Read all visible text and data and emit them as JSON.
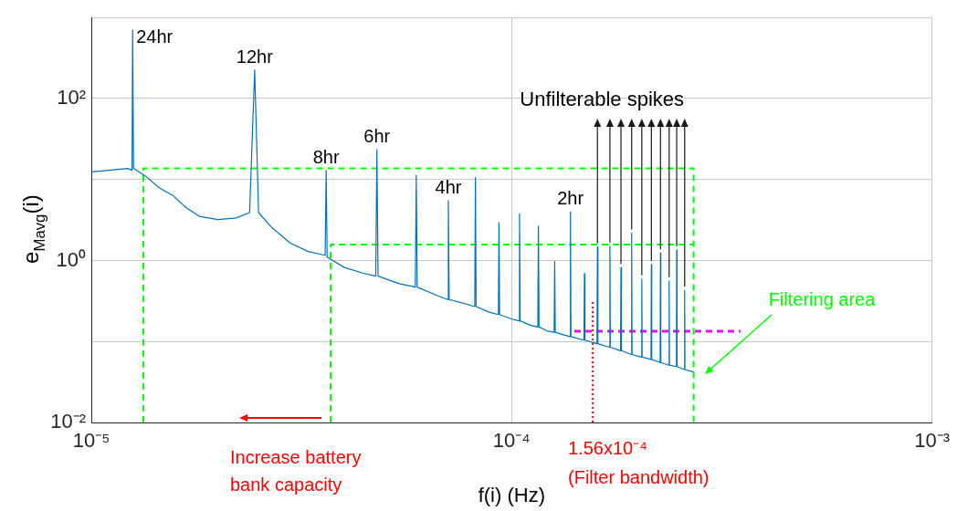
{
  "chart_data": {
    "type": "line",
    "xlabel": "f(i) (Hz)",
    "ylabel": "e$_{Mavg}$(i)",
    "log": "xy",
    "grid": true,
    "legend": false,
    "marker": "none",
    "xlim": [
      1e-05,
      0.001
    ],
    "xticks": [
      {
        "value": 1e-05,
        "label": "10⁻⁵"
      },
      {
        "value": 0.0001,
        "label": "10⁻⁴"
      },
      {
        "value": 0.001,
        "label": "10⁻³"
      }
    ],
    "ylim": [
      0.01,
      1000
    ],
    "yticks": [
      {
        "value": 0.01,
        "label": "10⁻²"
      },
      {
        "value": 0.1,
        "label": null
      },
      {
        "value": 1,
        "label": "10⁰"
      },
      {
        "value": 10,
        "label": null
      },
      {
        "value": 100,
        "label": "10²"
      },
      {
        "value": 1000,
        "label": null
      }
    ],
    "series": [
      {
        "color": "#0072bd",
        "line_style": "solid",
        "x": [
          1e-05,
          1.1e-05,
          1.22e-05,
          1.25e-05,
          1.254e-05,
          1.26e-05,
          1.35e-05,
          1.45e-05,
          1.56e-05,
          1.68e-05,
          1.81e-05,
          2e-05,
          2.21e-05,
          2.38e-05,
          2.447e-05,
          2.5e-05,
          2.69e-05,
          2.97e-05,
          3.28e-05,
          3.6e-05,
          3.62e-05,
          3.64e-05,
          4e-05,
          4.42e-05,
          4.75e-05,
          4.78e-05,
          4.81e-05,
          5.38e-05,
          5.9e-05,
          5.93e-05,
          5.96e-05,
          6.56e-05,
          7.04e-05,
          7.07e-05,
          7.1e-05,
          7.62e-05,
          8.17e-05,
          8.2e-05,
          8.23e-05,
          8.84e-05,
          9.3e-05,
          9.33e-05,
          9.36e-05,
          0.0001,
          0.000104,
          0.0001044,
          0.0001048,
          0.0001104,
          0.0001154,
          0.0001158,
          0.0001162,
          0.0001219,
          0.0001262,
          0.0001266,
          0.000127,
          0.0001327,
          0.0001376,
          0.000138,
          0.0001384,
          0.0001486,
          0.000149,
          0.0001494,
          0.0001596,
          0.00016,
          0.0001604,
          0.0001709,
          0.0001713,
          0.0001717,
          0.0001816,
          0.000182,
          0.0001824,
          0.0001926,
          0.000193,
          0.0001934,
          0.0002036,
          0.000204,
          0.0002044,
          0.0002146,
          0.000215,
          0.0002154,
          0.0002256,
          0.000226,
          0.0002264,
          0.0002366,
          0.000237,
          0.0002374,
          0.0002466,
          0.000247,
          0.0002474,
          0.0002576,
          0.000258,
          0.0002584,
          0.000271
        ],
        "values": [
          12.4,
          13.0,
          13.7,
          13.0,
          700,
          13.7,
          10.9,
          7.9,
          6.4,
          4.5,
          3.5,
          3.2,
          3.35,
          3.9,
          225,
          3.9,
          2.54,
          1.65,
          1.29,
          1.16,
          13,
          1.1,
          0.82,
          0.7,
          0.64,
          23.4,
          0.64,
          0.52,
          0.47,
          11.3,
          0.47,
          0.38,
          0.33,
          5.5,
          0.33,
          0.3,
          0.27,
          10.6,
          0.27,
          0.23,
          0.215,
          2.95,
          0.215,
          0.19,
          0.18,
          3.77,
          0.18,
          0.16,
          0.151,
          2.65,
          0.151,
          0.134,
          0.13,
          0.97,
          0.13,
          0.121,
          0.115,
          4.0,
          0.115,
          0.104,
          0.69,
          0.104,
          0.094,
          1.47,
          0.094,
          0.085,
          1.5,
          0.085,
          0.077,
          0.82,
          0.077,
          0.069,
          2.18,
          0.069,
          0.064,
          0.59,
          0.064,
          0.06,
          0.89,
          0.06,
          0.055,
          1.24,
          0.055,
          0.051,
          0.56,
          0.051,
          0.049,
          1.35,
          0.049,
          0.045,
          0.43,
          0.045,
          0.042
        ]
      },
      {
        "color": "#00ff00",
        "line_style": "dashed",
        "x": [
          1.33e-05,
          1.33e-05,
          0.000271,
          0.000271
        ],
        "values": [
          0.01,
          13.7,
          13.7,
          0.01
        ]
      },
      {
        "color": "#00ff00",
        "line_style": "dashed",
        "x": [
          3.71e-05,
          3.71e-05,
          0.000271
        ],
        "values": [
          0.01,
          1.57,
          1.57
        ]
      },
      {
        "color": "#ff00ff",
        "line_style": "dashed",
        "x": [
          0.000141,
          0.00035
        ],
        "values": [
          0.134,
          0.134
        ]
      },
      {
        "color": "#ff0000",
        "line_style": "dotted",
        "x": [
          0.000156,
          0.000156
        ],
        "values": [
          0.01,
          0.32
        ]
      }
    ],
    "annotations": [
      {
        "text": "24hr",
        "x": 1.254e-05,
        "y": 700
      },
      {
        "text": "12hr",
        "x": 2.447e-05,
        "y": 225
      },
      {
        "text": "8hr",
        "x": 3.62e-05,
        "y": 13
      },
      {
        "text": "6hr",
        "x": 4.78e-05,
        "y": 23.4
      },
      {
        "text": "4hr",
        "x": 7.07e-05,
        "y": 5.5
      },
      {
        "text": "2hr",
        "x": 0.000138,
        "y": 4.0
      },
      {
        "text": "Unfilterable spikes",
        "x": 0.00016,
        "y": 1.47
      },
      "Filtering area",
      "Increase battery bank capacity",
      "1.56x10⁻⁴ (Filter bandwidth)"
    ]
  }
}
